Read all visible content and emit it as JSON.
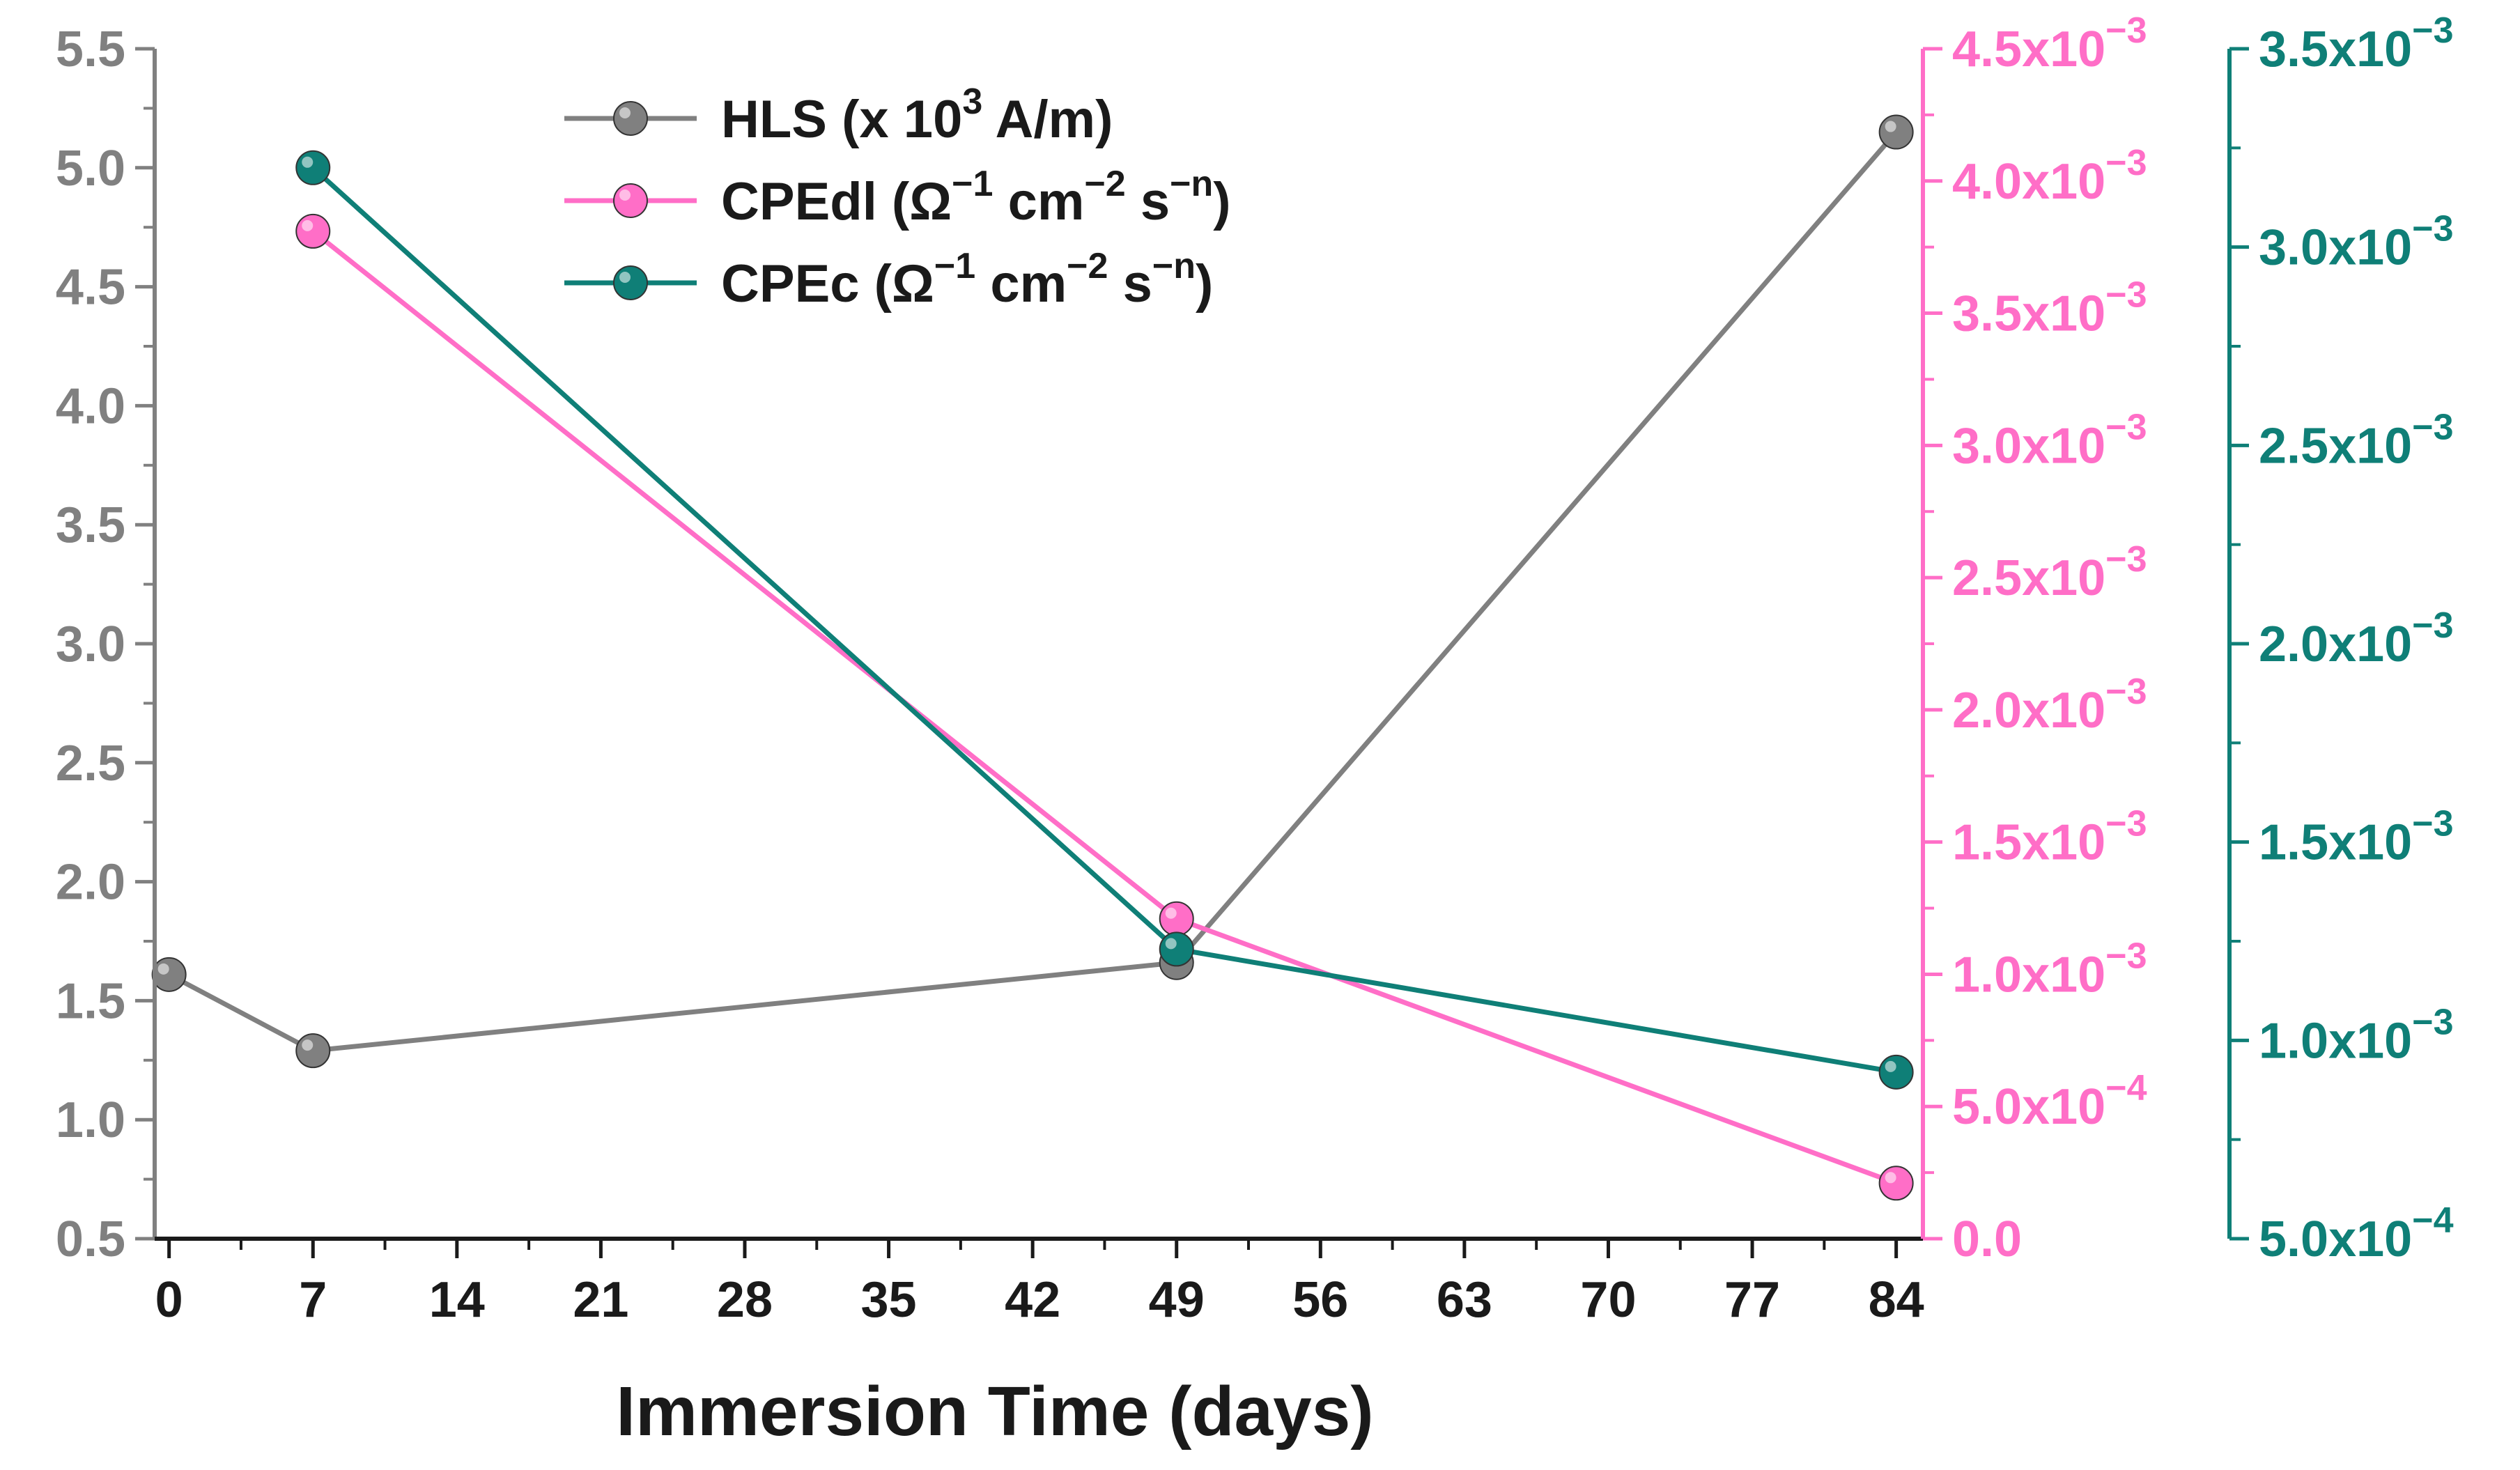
{
  "chart_data": {
    "type": "line",
    "xlabel": "Immersion Time (days)",
    "x_ticks": [
      "0",
      "7",
      "14",
      "21",
      "28",
      "35",
      "42",
      "49",
      "56",
      "63",
      "70",
      "77",
      "84"
    ],
    "xlim": [
      -0.7,
      85.3
    ],
    "axes": {
      "left": {
        "range": [
          0.5,
          5.5
        ],
        "ticks": [
          "0.5",
          "1.0",
          "1.5",
          "2.0",
          "2.5",
          "3.0",
          "3.5",
          "4.0",
          "4.5",
          "5.0",
          "5.5"
        ],
        "color": "#808080"
      },
      "right1": {
        "range": [
          0.0,
          0.0045
        ],
        "color": "#ff6ec7",
        "ticks": [
          {
            "mantissa": "0.0",
            "exp": ""
          },
          {
            "mantissa": "5.0x10",
            "exp": "−4"
          },
          {
            "mantissa": "1.0x10",
            "exp": "−3"
          },
          {
            "mantissa": "1.5x10",
            "exp": "−3"
          },
          {
            "mantissa": "2.0x10",
            "exp": "−3"
          },
          {
            "mantissa": "2.5x10",
            "exp": "−3"
          },
          {
            "mantissa": "3.0x10",
            "exp": "−3"
          },
          {
            "mantissa": "3.5x10",
            "exp": "−3"
          },
          {
            "mantissa": "4.0x10",
            "exp": "−3"
          },
          {
            "mantissa": "4.5x10",
            "exp": "−3"
          }
        ]
      },
      "right2": {
        "range": [
          0.0005,
          0.0035
        ],
        "color": "#0f7f77",
        "ticks": [
          {
            "mantissa": "5.0x10",
            "exp": "−4"
          },
          {
            "mantissa": "1.0x10",
            "exp": "−3"
          },
          {
            "mantissa": "1.5x10",
            "exp": "−3"
          },
          {
            "mantissa": "2.0x10",
            "exp": "−3"
          },
          {
            "mantissa": "2.5x10",
            "exp": "−3"
          },
          {
            "mantissa": "3.0x10",
            "exp": "−3"
          },
          {
            "mantissa": "3.5x10",
            "exp": "−3"
          }
        ]
      }
    },
    "series": [
      {
        "name": "HLS (x 10³ A/m)",
        "axis": "left",
        "color": "#808080",
        "legend": [
          {
            "t": "HLS (x 10"
          },
          {
            "t": "3",
            "sup": true
          },
          {
            "t": " A/m)"
          }
        ],
        "x": [
          0,
          7,
          49,
          84
        ],
        "y": [
          1.61,
          1.29,
          1.66,
          5.15
        ]
      },
      {
        "name": "CPEdl (Ω⁻¹ cm⁻² s⁻ⁿ)",
        "axis": "right1",
        "color": "#ff6ec7",
        "legend": [
          {
            "t": "CPEdl (Ω"
          },
          {
            "t": "−1",
            "sup": true
          },
          {
            "t": " cm"
          },
          {
            "t": "−2",
            "sup": true
          },
          {
            "t": " s"
          },
          {
            "t": "−n",
            "sup": true
          },
          {
            "t": ")"
          }
        ],
        "x": [
          7,
          49,
          84
        ],
        "y": [
          0.00381,
          0.00121,
          0.00021
        ]
      },
      {
        "name": "CPEc (Ω⁻¹ cm⁻² s⁻ⁿ)",
        "axis": "right2",
        "color": "#0f7f77",
        "legend": [
          {
            "t": "CPEc (Ω"
          },
          {
            "t": "−1",
            "sup": true
          },
          {
            "t": " cm"
          },
          {
            "t": "−2",
            "sup": true
          },
          {
            "t": " s"
          },
          {
            "t": "−n",
            "sup": true
          },
          {
            "t": ")"
          }
        ],
        "x": [
          7,
          49,
          84
        ],
        "y": [
          0.0032,
          0.00123,
          0.00092
        ]
      }
    ]
  }
}
